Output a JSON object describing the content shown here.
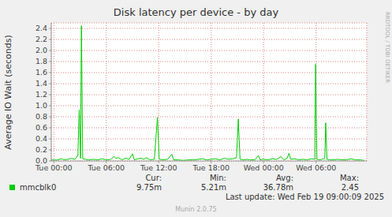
{
  "chart_data": {
    "type": "line",
    "title": "Disk latency per device - by day",
    "y_label": "Average IO Wait (seconds)",
    "x": [
      -0.3,
      0.0,
      0.3,
      0.6,
      0.9,
      1.2,
      1.6,
      2.0,
      2.4,
      2.75,
      2.9,
      3.05,
      3.15,
      3.3,
      3.6,
      4.0,
      4.5,
      5.0,
      5.5,
      6.0,
      6.5,
      6.9,
      7.1,
      7.4,
      7.8,
      8.2,
      8.6,
      9.0,
      9.2,
      9.6,
      10.0,
      10.3,
      10.6,
      11.0,
      11.5,
      11.85,
      12.05,
      12.5,
      13.0,
      13.5,
      13.7,
      14.2,
      14.8,
      15.5,
      16.0,
      16.5,
      17.0,
      17.5,
      18.0,
      18.5,
      19.0,
      19.5,
      20.0,
      20.5,
      20.9,
      21.1,
      21.3,
      21.7,
      22.1,
      22.5,
      23.0,
      23.4,
      23.6,
      24.0,
      24.5,
      25.0,
      25.5,
      26.0,
      26.3,
      26.7,
      26.9,
      27.1,
      27.5,
      28.0,
      28.5,
      29.0,
      29.5,
      29.85,
      29.95,
      30.1,
      30.5,
      31.0,
      31.1,
      31.25,
      31.6,
      32.0,
      32.5,
      33.0,
      33.5,
      34.0,
      34.5,
      35.0,
      35.5
    ],
    "series": [
      {
        "name": "mmcblk0",
        "color": "#00cc00",
        "values": [
          0.02,
          0.02,
          0.015,
          0.03,
          0.04,
          0.02,
          0.03,
          0.05,
          0.03,
          0.1,
          0.93,
          0.05,
          2.45,
          0.04,
          0.03,
          0.02,
          0.03,
          0.02,
          0.04,
          0.02,
          0.03,
          0.08,
          0.05,
          0.06,
          0.02,
          0.05,
          0.03,
          0.13,
          0.02,
          0.04,
          0.05,
          0.03,
          0.06,
          0.02,
          0.03,
          0.79,
          0.03,
          0.02,
          0.03,
          0.12,
          0.02,
          0.02,
          0.01,
          0.02,
          0.02,
          0.03,
          0.04,
          0.02,
          0.03,
          0.04,
          0.02,
          0.05,
          0.03,
          0.04,
          0.06,
          0.76,
          0.03,
          0.02,
          0.03,
          0.02,
          0.02,
          0.1,
          0.02,
          0.03,
          0.02,
          0.04,
          0.03,
          0.08,
          0.02,
          0.05,
          0.14,
          0.03,
          0.04,
          0.02,
          0.03,
          0.02,
          0.04,
          0.03,
          1.75,
          0.03,
          0.02,
          0.05,
          0.69,
          0.03,
          0.02,
          0.02,
          0.03,
          0.02,
          0.02,
          0.04,
          0.02,
          0.02,
          0.01
        ]
      }
    ],
    "xlim": [
      -0.3,
      35.8
    ],
    "xticks": [
      {
        "value": 0,
        "label": "Tue 00:00"
      },
      {
        "value": 6,
        "label": "Tue 06:00"
      },
      {
        "value": 12,
        "label": "Tue 12:00"
      },
      {
        "value": 18,
        "label": "Tue 18:00"
      },
      {
        "value": 24,
        "label": "Wed 00:00"
      },
      {
        "value": 30,
        "label": "Wed 06:00"
      }
    ],
    "ylim": [
      0,
      2.5
    ],
    "yticks": [
      {
        "value": 0,
        "label": "0.0"
      },
      0.2,
      0.4,
      0.6,
      0.8,
      {
        "value": 1,
        "label": "1.0"
      },
      1.2,
      1.4,
      1.6,
      1.8,
      {
        "value": 2,
        "label": "2.0"
      },
      2.2,
      2.4
    ],
    "grid": true,
    "stats": [
      {
        "name": "Cur:",
        "text": "9.75m"
      },
      {
        "name": "Min:",
        "text": "5.21m"
      },
      {
        "name": "Avg:",
        "text": "36.78m"
      },
      {
        "name": "Max:",
        "text": "2.45"
      }
    ],
    "last_update": "Last update: Wed Feb 19 09:00:09 2025",
    "credit": "Munin 2.0.75",
    "side_text": "RRDTOOL / TOBI OETIKER"
  }
}
